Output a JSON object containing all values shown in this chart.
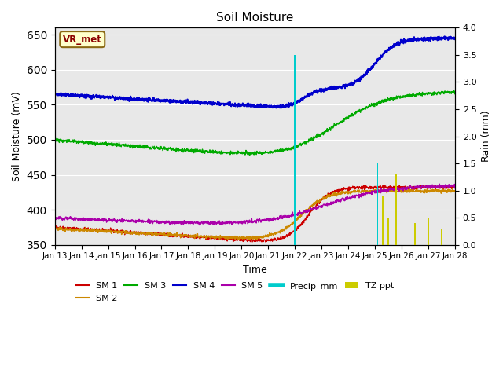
{
  "title": "Soil Moisture",
  "xlabel": "Time",
  "ylabel_left": "Soil Moisture (mV)",
  "ylabel_right": "Rain (mm)",
  "station_label": "VR_met",
  "ylim_left": [
    350,
    660
  ],
  "ylim_right": [
    0.0,
    4.0
  ],
  "yticks_left": [
    350,
    400,
    450,
    500,
    550,
    600,
    650
  ],
  "yticks_right": [
    0.0,
    0.5,
    1.0,
    1.5,
    2.0,
    2.5,
    3.0,
    3.5,
    4.0
  ],
  "xtick_labels": [
    "Jan 13",
    "Jan 14",
    "Jan 15",
    "Jan 16",
    "Jan 17",
    "Jan 18",
    "Jan 19",
    "Jan 20",
    "Jan 21",
    "Jan 22",
    "Jan 23",
    "Jan 24",
    "Jan 25",
    "Jan 26",
    "Jan 27",
    "Jan 28"
  ],
  "bg_color": "#e8e8e8",
  "grid_color": "#ffffff",
  "sm1_color": "#cc0000",
  "sm2_color": "#cc8800",
  "sm3_color": "#00aa00",
  "sm4_color": "#0000cc",
  "sm5_color": "#aa00aa",
  "precip_color": "#00cccc",
  "tzppt_color": "#cccc00",
  "precip_times": [
    9.0
  ],
  "precip_vals": [
    3.5
  ],
  "tz_times": [
    9.0,
    12.1,
    12.3,
    12.5,
    12.8,
    13.5,
    14.0,
    14.5
  ],
  "tz_vals": [
    2.5,
    0.6,
    0.9,
    0.5,
    1.3,
    0.4,
    0.5,
    0.3
  ]
}
